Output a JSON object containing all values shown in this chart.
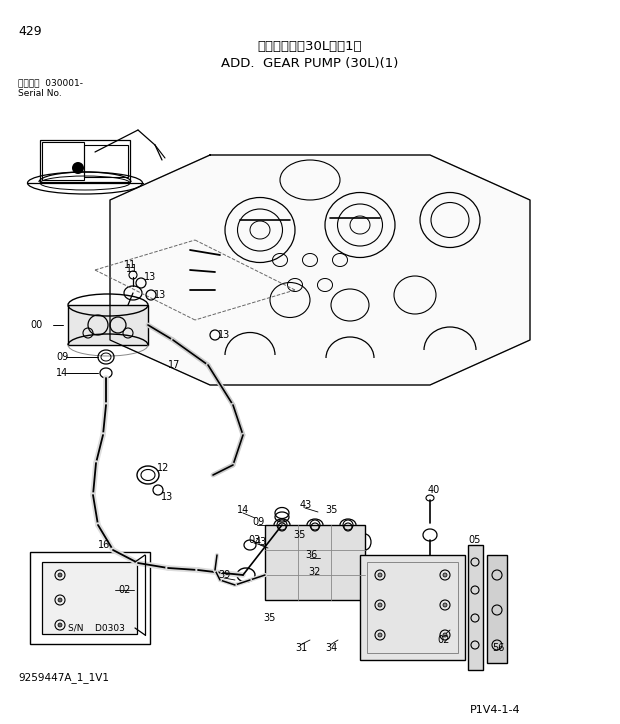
{
  "page_number": "429",
  "title_line1": "追加ポンプ（30L）（1）",
  "title_line2": "ADD.  GEAR PUMP (30L)(1)",
  "serial_label": "適用号機  030001-",
  "serial_no": "Serial No.",
  "drawing_code": "9259447A_1_1V1",
  "page_code": "P1V4-1-4",
  "sn_box_text": "S/N    D0303",
  "bg": "#ffffff",
  "lc": "#000000",
  "fig_width": 6.2,
  "fig_height": 7.24,
  "dpi": 100
}
